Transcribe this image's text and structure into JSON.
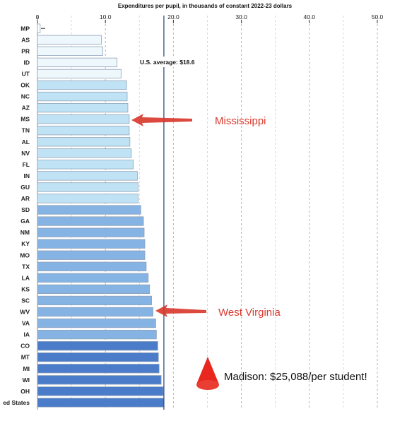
{
  "chart_data": {
    "type": "bar",
    "orientation": "horizontal",
    "title": "Expenditures per pupil, in thousands of constant 2022-23 dollars",
    "xlabel": "",
    "ylabel": "",
    "xlim": [
      0,
      50
    ],
    "x_ticks": [
      "0",
      "10.0",
      "20.0",
      "30.0",
      "40.0",
      "50.0"
    ],
    "grid": "vertical dashed",
    "categories": [
      "MP",
      "AS",
      "PR",
      "ID",
      "UT",
      "OK",
      "NC",
      "AZ",
      "MS",
      "TN",
      "AL",
      "NV",
      "FL",
      "IN",
      "GU",
      "AR",
      "SD",
      "GA",
      "NM",
      "KY",
      "MO",
      "TX",
      "LA",
      "KS",
      "SC",
      "WV",
      "VA",
      "IA",
      "CO",
      "MT",
      "MI",
      "WI",
      "OH",
      "ed States"
    ],
    "values": [
      0.4,
      9.4,
      9.6,
      11.7,
      12.3,
      13.1,
      13.2,
      13.3,
      13.5,
      13.5,
      13.6,
      13.8,
      14.1,
      14.7,
      14.8,
      14.8,
      15.2,
      15.6,
      15.7,
      15.8,
      15.8,
      16.0,
      16.3,
      16.5,
      16.8,
      17.0,
      17.4,
      17.5,
      17.7,
      17.8,
      17.9,
      18.2,
      18.5,
      18.6
    ],
    "bar_colors": [
      "#ffffff",
      "#eef7fc",
      "#eef7fc",
      "#eef7fc",
      "#eef7fc",
      "#bfe3f5",
      "#bfe3f5",
      "#bfe3f5",
      "#bfe3f5",
      "#bfe3f5",
      "#bfe3f5",
      "#bfe3f5",
      "#bfe3f5",
      "#bfe3f5",
      "#bfe3f5",
      "#bfe3f5",
      "#85b3e3",
      "#85b3e3",
      "#85b3e3",
      "#85b3e3",
      "#85b3e3",
      "#85b3e3",
      "#85b3e3",
      "#85b3e3",
      "#85b3e3",
      "#85b3e3",
      "#85b3e3",
      "#85b3e3",
      "#4a7cc9",
      "#4a7cc9",
      "#4a7cc9",
      "#4a7cc9",
      "#4a7cc9",
      "#4a7cc9"
    ],
    "reference_line": {
      "value": 18.6,
      "label": "U.S. average: $18.6",
      "color": "#2e4f86"
    },
    "annotations": [
      {
        "text": "Mississippi",
        "target": "MS",
        "color": "#d83a2e"
      },
      {
        "text": "West Virginia",
        "target": "WV",
        "color": "#d83a2e"
      },
      {
        "text": "Madison: $25,088/per student!",
        "color": "#111111"
      }
    ]
  },
  "colors": {
    "arrow": "#d8362a",
    "cone": "#e8271e",
    "border": "#8fa2b8",
    "grid": "#b5b5b5"
  }
}
